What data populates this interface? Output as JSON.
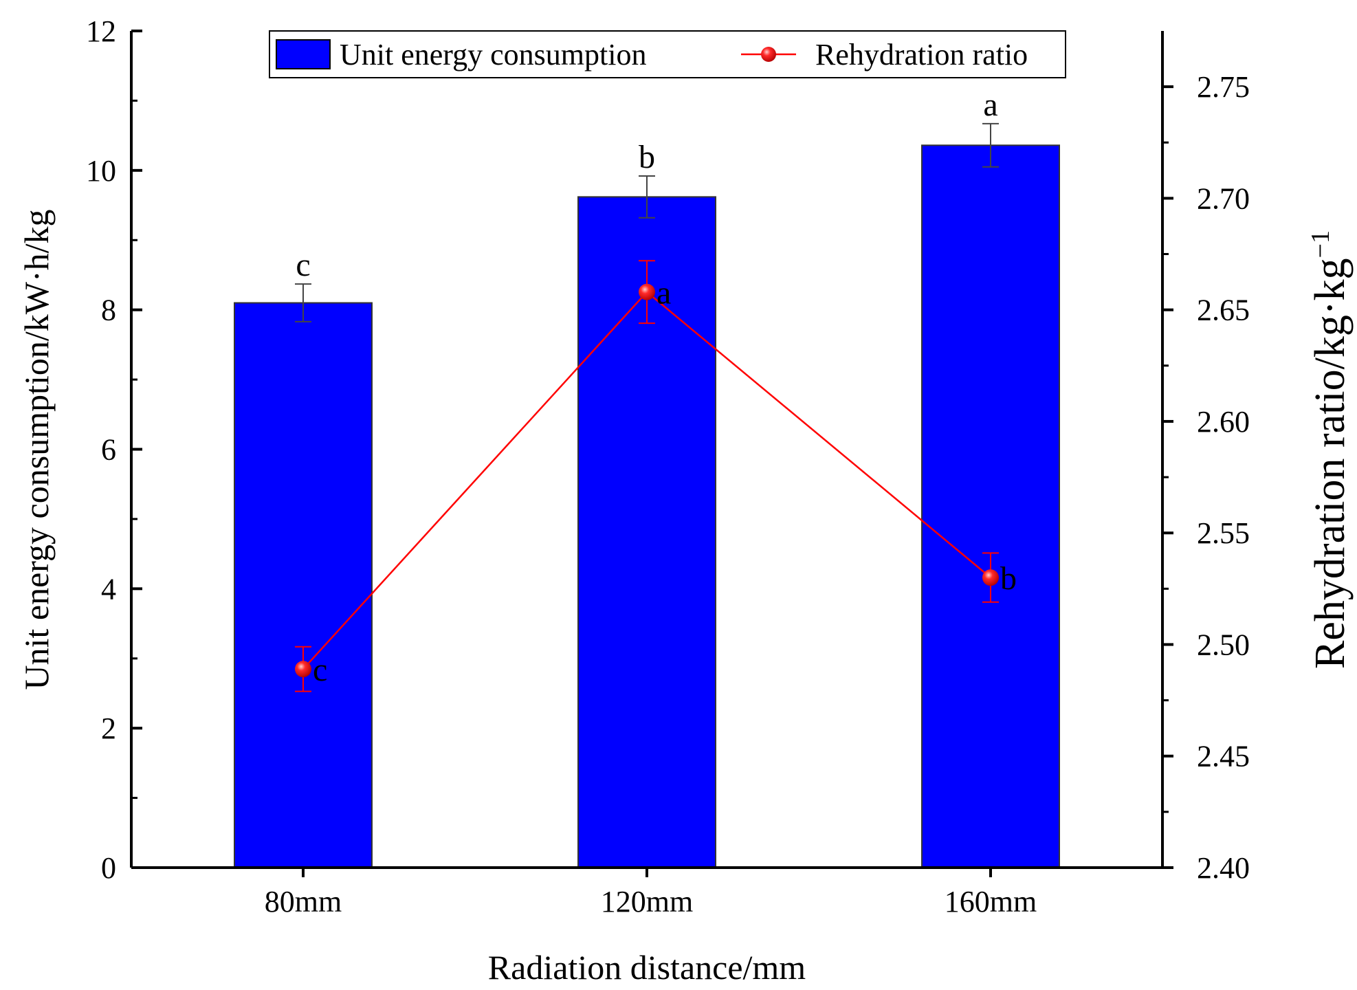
{
  "chart_data": {
    "type": "bar",
    "categories": [
      "80mm",
      "120mm",
      "160mm"
    ],
    "xlabel": "Radiation distance/mm",
    "ylabel": "Unit energy consumption/kW·h/kg",
    "ylabel_right": "Rehydration ratio/kg·kg",
    "ylabel_right_superscript": "−1",
    "ylim": [
      0,
      12
    ],
    "y_ticks": [
      "0",
      "2",
      "4",
      "6",
      "8",
      "10",
      "12"
    ],
    "y2lim": [
      2.4,
      2.775
    ],
    "y2_ticks": [
      "2.40",
      "2.45",
      "2.50",
      "2.55",
      "2.60",
      "2.65",
      "2.70",
      "2.75"
    ],
    "legend_position": "top",
    "grid": false,
    "series": [
      {
        "name": "Unit energy consumption",
        "kind": "bar",
        "axis": "left",
        "color": "#0000ff",
        "values": [
          8.1,
          9.62,
          10.36
        ],
        "errors": [
          0.27,
          0.3,
          0.31
        ],
        "significance": [
          "c",
          "b",
          "a"
        ]
      },
      {
        "name": "Rehydration ratio",
        "kind": "line",
        "axis": "right",
        "color": "#ff0000",
        "values": [
          2.489,
          2.658,
          2.53
        ],
        "errors": [
          0.01,
          0.014,
          0.011
        ],
        "significance": [
          "c",
          "a",
          "b"
        ]
      }
    ]
  }
}
